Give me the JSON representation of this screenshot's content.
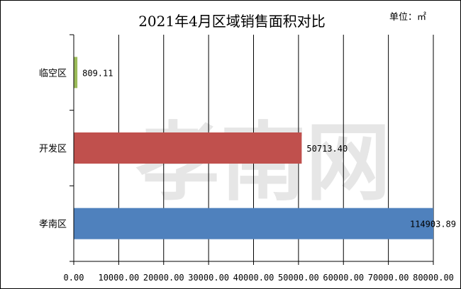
{
  "chart_data": {
    "type": "bar",
    "orientation": "horizontal",
    "title": "2021年4月区域销售面积对比",
    "unit_label": "单位：㎡",
    "watermark": "孝南网",
    "categories": [
      "临空区",
      "开发区",
      "孝南区"
    ],
    "values": [
      809.11,
      50713.4,
      114903.89
    ],
    "value_labels": [
      "809.11",
      "50713.40",
      "114903.89"
    ],
    "colors": [
      "#9bbb59",
      "#c0504d",
      "#4f81bd"
    ],
    "xlim": [
      0,
      80000
    ],
    "xticks": [
      "0.00",
      "10000.00",
      "20000.00",
      "30000.00",
      "40000.00",
      "50000.00",
      "60000.00",
      "70000.00",
      "80000.00"
    ],
    "grid": true,
    "legend": "none"
  }
}
